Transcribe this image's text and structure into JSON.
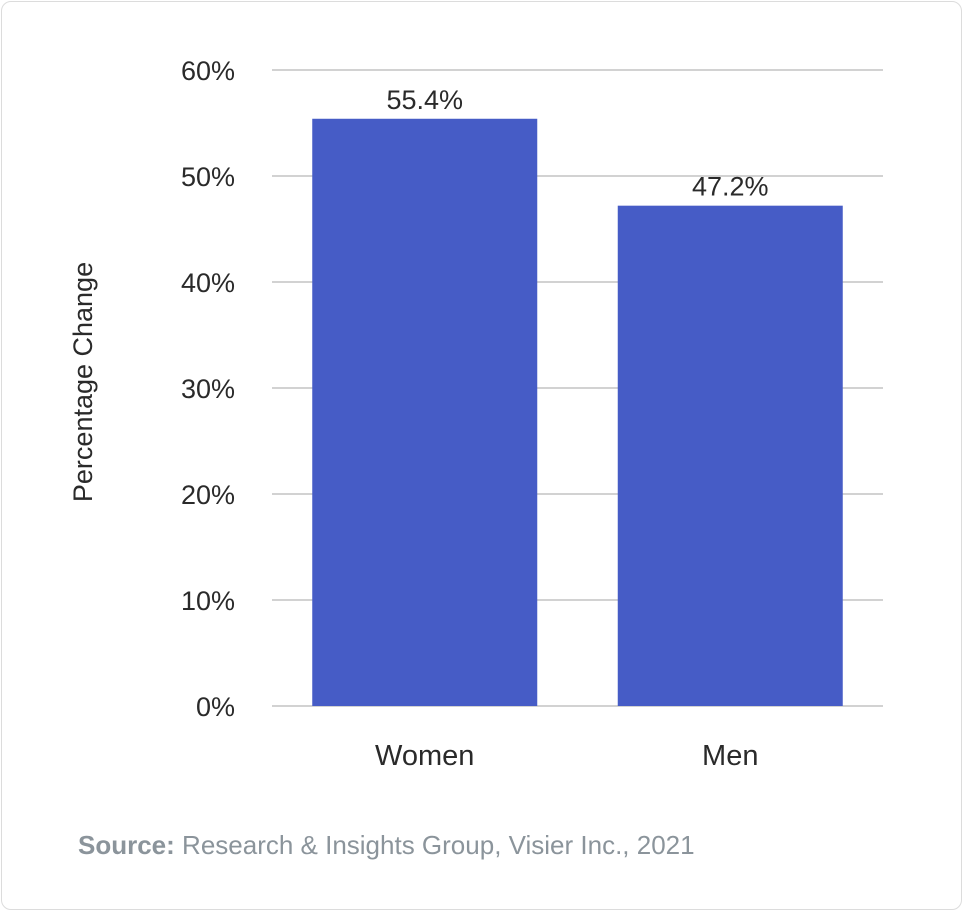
{
  "chart_data": {
    "type": "bar",
    "categories": [
      "Women",
      "Men"
    ],
    "values": [
      55.4,
      47.2
    ],
    "data_labels": [
      "55.4%",
      "47.2%"
    ],
    "title": "",
    "xlabel": "",
    "ylabel": "Percentage Change",
    "ylim": [
      0,
      60
    ],
    "yticks": [
      0,
      10,
      20,
      30,
      40,
      50,
      60
    ],
    "ytick_labels": [
      "0%",
      "10%",
      "20%",
      "30%",
      "40%",
      "50%",
      "60%"
    ],
    "grid": true,
    "legend": "none",
    "bar_color": "#465cc6",
    "grid_color": "#d2d2d2"
  },
  "source": {
    "label": "Source:",
    "text": " Research & Insights Group, Visier Inc., 2021"
  }
}
